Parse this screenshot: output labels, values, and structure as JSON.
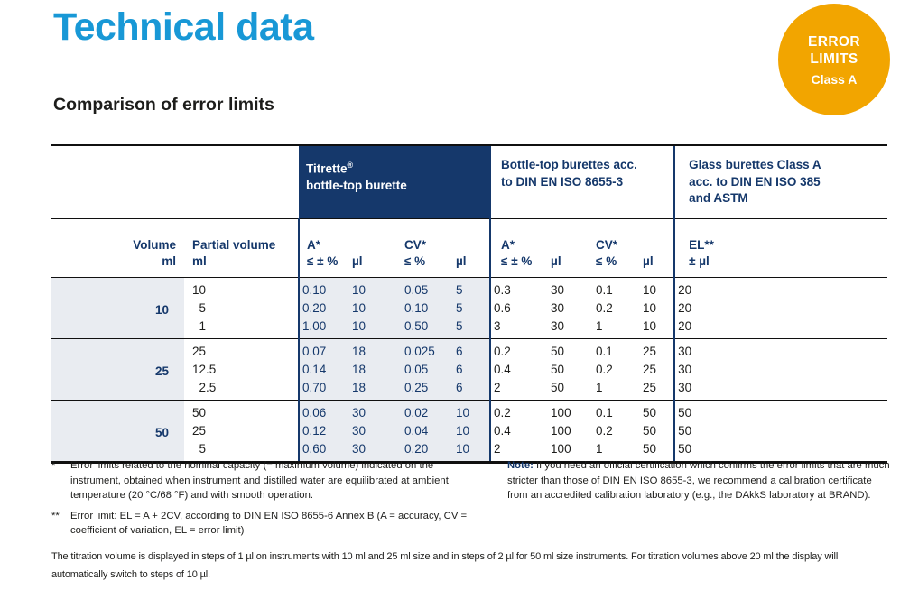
{
  "page": {
    "title": "Technical data",
    "section_heading": "Comparison of error limits"
  },
  "badge": {
    "line1": "ERROR",
    "line2": "LIMITS",
    "line3": "Class A"
  },
  "colors": {
    "accent_blue": "#1898D6",
    "navy": "#15386B",
    "badge_orange": "#F2A500",
    "shade_gray": "#E9ECF1"
  },
  "table": {
    "group_headers": {
      "titrette_name": "Titrette",
      "titrette_reg": "®",
      "titrette_line2": "bottle-top burette",
      "din_line1": "Bottle-top burettes acc.",
      "din_line2": "to DIN EN ISO 8655-3",
      "glass_line1": "Glass burettes Class A",
      "glass_line2": "acc. to DIN EN ISO 385",
      "glass_line3": "and ASTM"
    },
    "subheader": {
      "volume_label": "Volume",
      "volume_unit": "ml",
      "partial_label": "Partial volume",
      "partial_unit": "ml",
      "a_label": "A*",
      "a_cond": "≤ ± %",
      "cv_label": "CV*",
      "cv_cond": "≤ %",
      "ul": "µl",
      "el_label": "EL**",
      "el_cond": "± µl"
    },
    "groups": [
      {
        "volume": "10",
        "rows": [
          {
            "partial": "10",
            "cells": [
              "0.10",
              "10",
              "0.05",
              "5",
              "0.3",
              "30",
              "0.1",
              "10",
              "20"
            ]
          },
          {
            "partial": "5",
            "cells": [
              "0.20",
              "10",
              "0.10",
              "5",
              "0.6",
              "30",
              "0.2",
              "10",
              "20"
            ]
          },
          {
            "partial": "1",
            "cells": [
              "1.00",
              "10",
              "0.50",
              "5",
              "3",
              "30",
              "1",
              "10",
              "20"
            ]
          }
        ]
      },
      {
        "volume": "25",
        "rows": [
          {
            "partial": "25",
            "cells": [
              "0.07",
              "18",
              "0.025",
              "6",
              "0.2",
              "50",
              "0.1",
              "25",
              "30"
            ]
          },
          {
            "partial": "12.5",
            "cells": [
              "0.14",
              "18",
              "0.05",
              "6",
              "0.4",
              "50",
              "0.2",
              "25",
              "30"
            ]
          },
          {
            "partial": "2.5",
            "cells": [
              "0.70",
              "18",
              "0.25",
              "6",
              "2",
              "50",
              "1",
              "25",
              "30"
            ]
          }
        ]
      },
      {
        "volume": "50",
        "rows": [
          {
            "partial": "50",
            "cells": [
              "0.06",
              "30",
              "0.02",
              "10",
              "0.2",
              "100",
              "0.1",
              "50",
              "50"
            ]
          },
          {
            "partial": "25",
            "cells": [
              "0.12",
              "30",
              "0.04",
              "10",
              "0.4",
              "100",
              "0.2",
              "50",
              "50"
            ]
          },
          {
            "partial": "5",
            "cells": [
              "0.60",
              "30",
              "0.20",
              "10",
              "2",
              "100",
              "1",
              "50",
              "50"
            ]
          }
        ]
      }
    ]
  },
  "footnotes": [
    {
      "marker": "*",
      "text": "Error limits related to the nominal capacity (= maximum volume) indicated on the instrument, obtained when instrument and distilled water are equilibrated at ambient temperature (20 °C/68 °F) and with smooth operation."
    },
    {
      "marker": "**",
      "text": "Error limit: EL = A + 2CV, according to DIN EN ISO 8655-6 Annex B (A = accuracy, CV = coefficient of variation, EL = error limit)"
    }
  ],
  "note": {
    "label": "Note:",
    "text": "If you need an official certification which confirms the error limits that are much stricter than those of DIN EN ISO 8655-3, we recommend a calibration certificate from an accredited calibration laboratory (e.g., the DAkkS laboratory at BRAND)."
  },
  "bottom_paragraph": "The titration volume is displayed in steps of 1 µl on instruments with 10 ml and 25 ml size and in steps of 2 µl for 50 ml size instruments. For titration volumes above 20 ml the display will automatically switch to steps of 10 µl."
}
